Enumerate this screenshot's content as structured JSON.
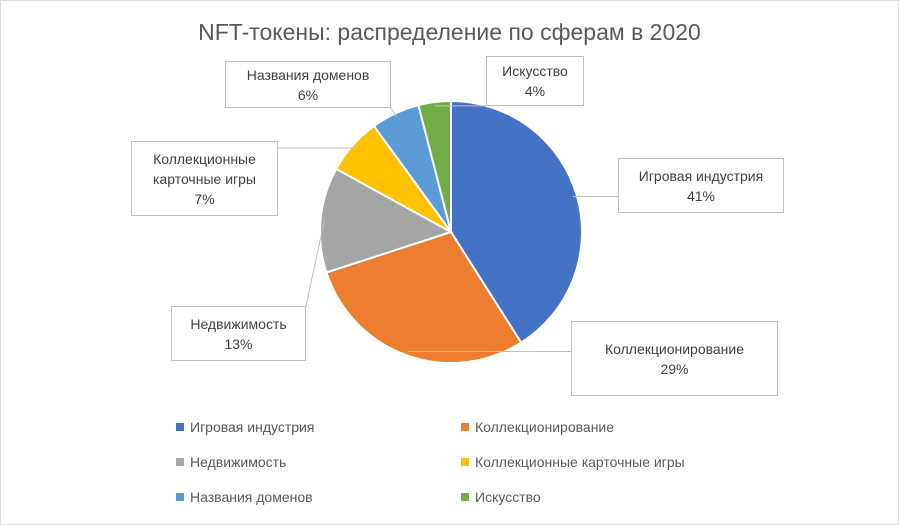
{
  "chart_data": {
    "type": "pie",
    "title": "NFT-токены: распределение по сферам в 2020",
    "categories": [
      "Игровая индустрия",
      "Коллекционирование",
      "Недвижимость",
      "Коллекционные карточные игры",
      "Названия доменов",
      "Искусство"
    ],
    "values": [
      41,
      29,
      13,
      7,
      6,
      4
    ],
    "value_labels": [
      "41%",
      "29%",
      "13%",
      "7%",
      "6%",
      "4%"
    ],
    "colors": [
      "#4472c4",
      "#ed7d31",
      "#a5a5a5",
      "#ffc000",
      "#5b9bd5",
      "#70ad47"
    ],
    "legend": "bottom"
  }
}
